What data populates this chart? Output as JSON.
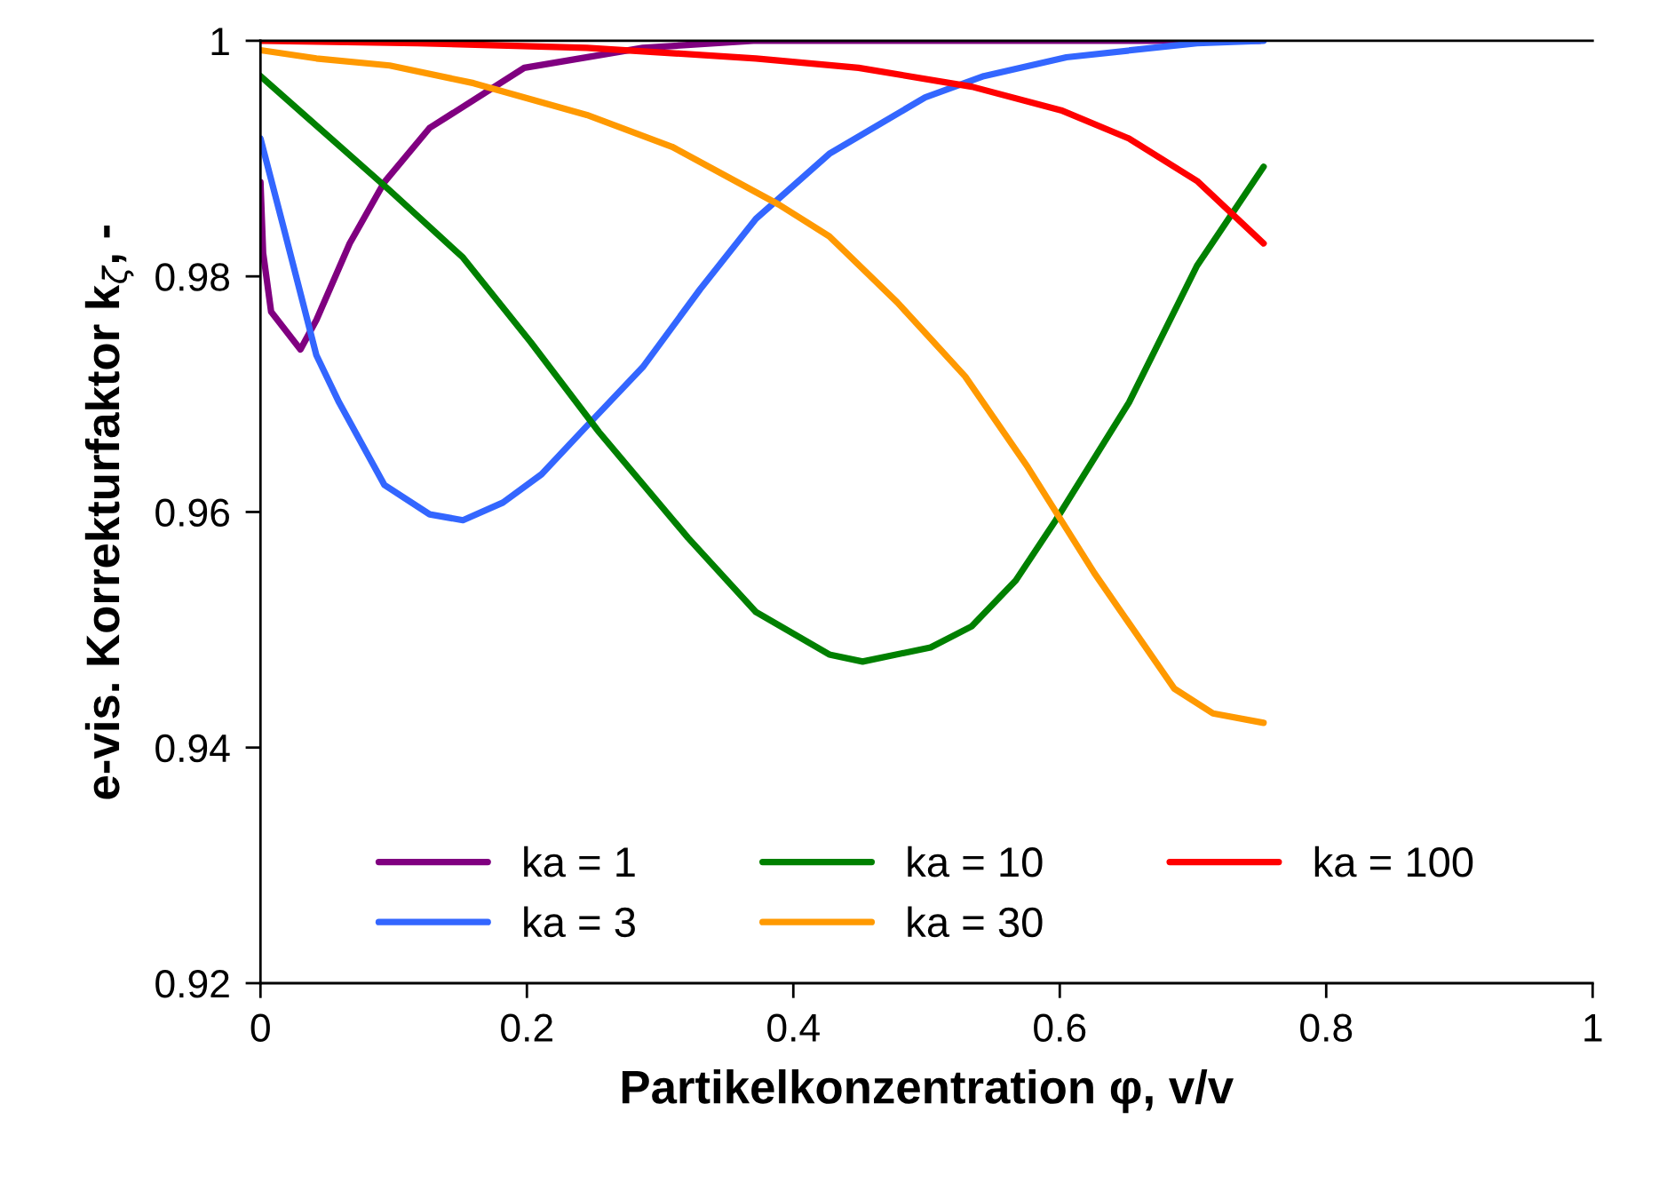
{
  "chart_data": {
    "type": "line",
    "xlabel": "Partikelkonzentration φ, v/v",
    "ylabel": "e-vis. Korrekturfaktor k$_{ζ}$, -",
    "xlim": [
      0,
      1
    ],
    "ylim": [
      0.92,
      1
    ],
    "xticks": [
      0,
      0.2,
      0.4,
      0.6,
      0.8,
      1
    ],
    "yticks": [
      0.92,
      0.94,
      0.96,
      0.98,
      1
    ],
    "grid": false,
    "legend": "bottom",
    "marker": "none",
    "line_style": "solid",
    "series": [
      {
        "name": "ka = 1",
        "color": "#800080",
        "x": [
          0,
          0.002,
          0.008,
          0.03,
          0.042,
          0.067,
          0.093,
          0.127,
          0.198,
          0.287,
          0.37,
          0.5,
          0.75
        ],
        "values": [
          0.988,
          0.982,
          0.977,
          0.9738,
          0.9763,
          0.9828,
          0.988,
          0.9926,
          0.9977,
          0.9994,
          1.0,
          1.0,
          1.0
        ]
      },
      {
        "name": "ka = 3",
        "color": "#3366ff",
        "x": [
          0,
          0.017,
          0.042,
          0.059,
          0.093,
          0.127,
          0.152,
          0.182,
          0.211,
          0.245,
          0.287,
          0.33,
          0.372,
          0.427,
          0.499,
          0.543,
          0.605,
          0.703,
          0.753
        ],
        "values": [
          0.9917,
          0.9843,
          0.9733,
          0.9693,
          0.9623,
          0.9598,
          0.9593,
          0.9608,
          0.9632,
          0.9673,
          0.9723,
          0.9789,
          0.9849,
          0.9904,
          0.9952,
          0.997,
          0.9986,
          0.9998,
          1.0
        ]
      },
      {
        "name": "ka = 10",
        "color": "#008000",
        "x": [
          0,
          0.033,
          0.071,
          0.097,
          0.152,
          0.203,
          0.254,
          0.321,
          0.372,
          0.427,
          0.452,
          0.503,
          0.534,
          0.567,
          0.597,
          0.652,
          0.703,
          0.753
        ],
        "values": [
          0.997,
          0.9937,
          0.9899,
          0.9873,
          0.9816,
          0.9744,
          0.9668,
          0.9578,
          0.9515,
          0.9479,
          0.9473,
          0.9485,
          0.9503,
          0.9542,
          0.9593,
          0.9693,
          0.9809,
          0.9893
        ]
      },
      {
        "name": "ka = 30",
        "color": "#ff9900",
        "x": [
          0,
          0.042,
          0.097,
          0.16,
          0.245,
          0.309,
          0.389,
          0.427,
          0.478,
          0.529,
          0.576,
          0.626,
          0.686,
          0.715,
          0.753
        ],
        "values": [
          0.9992,
          0.9985,
          0.9979,
          0.9964,
          0.9937,
          0.991,
          0.9861,
          0.9834,
          0.9778,
          0.9715,
          0.9638,
          0.9548,
          0.945,
          0.9429,
          0.9421
        ]
      },
      {
        "name": "ka = 100",
        "color": "#ff0000",
        "x": [
          0,
          0.118,
          0.245,
          0.372,
          0.449,
          0.534,
          0.601,
          0.652,
          0.703,
          0.753
        ],
        "values": [
          1.0,
          0.9998,
          0.9994,
          0.9985,
          0.9977,
          0.9961,
          0.9941,
          0.9917,
          0.9881,
          0.9828
        ]
      }
    ]
  }
}
